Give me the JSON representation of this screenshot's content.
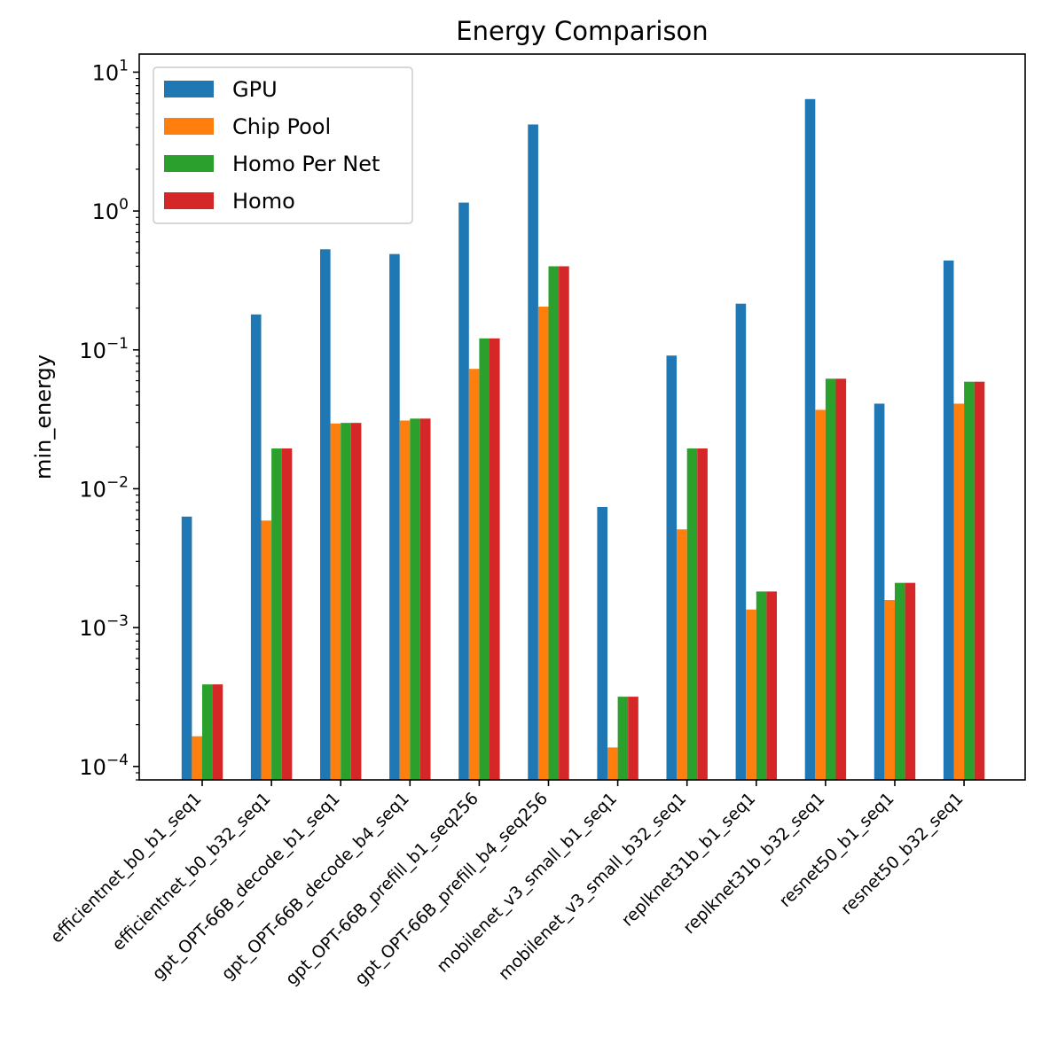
{
  "chart_data": {
    "type": "bar",
    "title": "Energy Comparison",
    "xlabel": "",
    "ylabel": "min_energy",
    "yscale": "log",
    "ylim": [
      8e-05,
      13.5
    ],
    "yticks": [
      0.0001,
      0.001,
      0.01,
      0.1,
      1,
      10
    ],
    "ytick_labels": [
      {
        "base": "10",
        "exp": "−4"
      },
      {
        "base": "10",
        "exp": "−3"
      },
      {
        "base": "10",
        "exp": "−2"
      },
      {
        "base": "10",
        "exp": "−1"
      },
      {
        "base": "10",
        "exp": "0"
      },
      {
        "base": "10",
        "exp": "1"
      }
    ],
    "grid": false,
    "legend_position": "top-left",
    "categories": [
      "efficientnet_b0_b1_seq1",
      "efficientnet_b0_b32_seq1",
      "gpt_OPT-66B_decode_b1_seq1",
      "gpt_OPT-66B_decode_b4_seq1",
      "gpt_OPT-66B_prefill_b1_seq256",
      "gpt_OPT-66B_prefill_b4_seq256",
      "mobilenet_v3_small_b1_seq1",
      "mobilenet_v3_small_b32_seq1",
      "replknet31b_b1_seq1",
      "replknet31b_b32_seq1",
      "resnet50_b1_seq1",
      "resnet50_b32_seq1"
    ],
    "series": [
      {
        "name": "GPU",
        "color": "#1f77b4",
        "values": [
          0.0063,
          0.18,
          0.53,
          0.49,
          1.15,
          4.2,
          0.0074,
          0.091,
          0.215,
          6.4,
          0.041,
          0.44
        ]
      },
      {
        "name": "Chip Pool",
        "color": "#ff7f0e",
        "values": [
          0.000165,
          0.0059,
          0.0295,
          0.031,
          0.073,
          0.205,
          0.000137,
          0.0051,
          0.00135,
          0.037,
          0.00158,
          0.041
        ]
      },
      {
        "name": "Homo Per Net",
        "color": "#2ca02c",
        "values": [
          0.00039,
          0.0195,
          0.0298,
          0.032,
          0.121,
          0.4,
          0.000318,
          0.0195,
          0.00182,
          0.062,
          0.0021,
          0.059
        ]
      },
      {
        "name": "Homo",
        "color": "#d62728",
        "values": [
          0.00039,
          0.0195,
          0.0298,
          0.032,
          0.121,
          0.4,
          0.000318,
          0.0195,
          0.00182,
          0.062,
          0.0021,
          0.059
        ]
      }
    ]
  }
}
